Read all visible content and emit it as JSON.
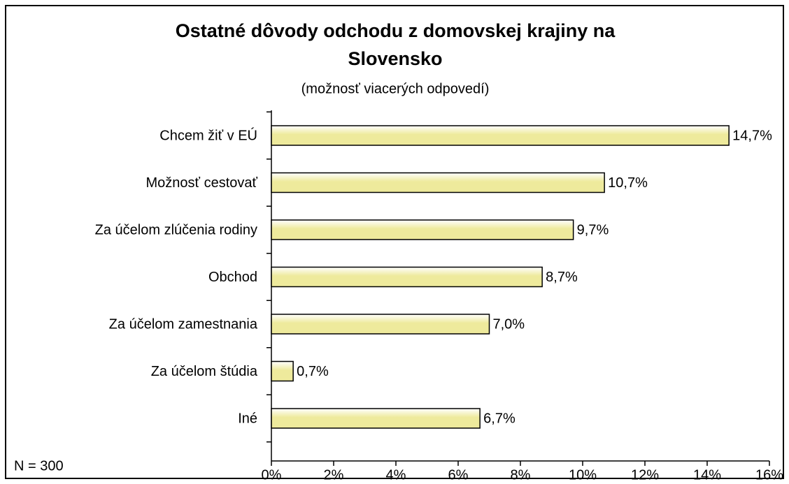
{
  "chart_data": {
    "type": "bar",
    "orientation": "horizontal",
    "title": [
      "Ostatné dôvody odchodu z domovskej krajiny na",
      "Slovensko"
    ],
    "subtitle": "(možnosť viacerých odpovedí)",
    "note": "N = 300",
    "categories": [
      "Chcem žiť v EÚ",
      "Možnosť cestovať",
      "Za účelom zlúčenia rodiny",
      "Obchod",
      "Za účelom zamestnania",
      "Za účelom štúdia",
      "Iné"
    ],
    "values": [
      14.7,
      10.7,
      9.7,
      8.7,
      7.0,
      0.7,
      6.7
    ],
    "value_labels": [
      "14,7%",
      "10,7%",
      "9,7%",
      "8,7%",
      "7,0%",
      "0,7%",
      "6,7%"
    ],
    "color": "#eeea9c",
    "xlim": [
      0,
      16
    ],
    "xticks": [
      {
        "value": 0,
        "label": "0%"
      },
      {
        "value": 2,
        "label": "2%"
      },
      {
        "value": 4,
        "label": "4%"
      },
      {
        "value": 6,
        "label": "6%"
      },
      {
        "value": 8,
        "label": "8%"
      },
      {
        "value": 10,
        "label": "10%"
      },
      {
        "value": 12,
        "label": "12%"
      },
      {
        "value": 14,
        "label": "14%"
      },
      {
        "value": 16,
        "label": "16%"
      }
    ],
    "grid": false
  }
}
